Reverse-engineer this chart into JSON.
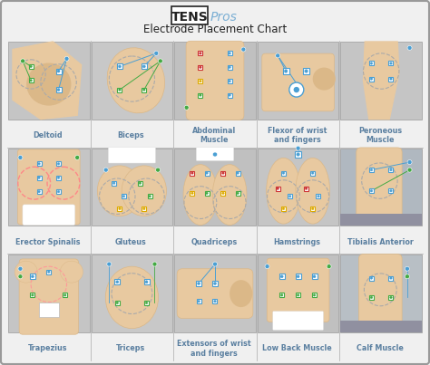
{
  "title_bold": "TENS",
  "title_italic": " Pros",
  "subtitle": "Electrode Placement Chart",
  "outer_bg": "#f0f0f0",
  "inner_bg": "#ffffff",
  "border_color": "#888888",
  "cell_bg_light": "#c8c8c8",
  "cell_bg_mid": "#b8b8b8",
  "skin_light": "#e8c9a0",
  "skin_mid": "#dbb888",
  "skin_dark": "#c9a070",
  "text_color": "#5a7fa0",
  "title_color": "#222222",
  "electrode_blue": "#4a9fd4",
  "electrode_green": "#44aa44",
  "electrode_red": "#cc3333",
  "electrode_yellow": "#ddaa00",
  "wire_color": "#555555",
  "fig_bg": "#f0f0f0",
  "labels": [
    [
      "Deltoid",
      "Biceps",
      "Abdominal\nMuscle",
      "Flexor of wrist\nand fingers",
      "Peroneous\nMuscle"
    ],
    [
      "Erector Spinalis",
      "Gluteus",
      "Quadriceps",
      "Hamstrings",
      "Tibialis Anterior"
    ],
    [
      "Trapezius",
      "Triceps",
      "Extensors of wrist\nand fingers",
      "Low Back Muscle",
      "Calf Muscle"
    ]
  ]
}
